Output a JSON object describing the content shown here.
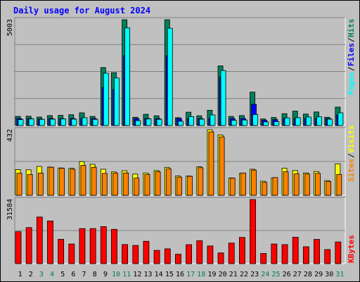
{
  "title": "Daily usage for August 2024",
  "colors": {
    "hits": "#00805c",
    "files": "#0000ff",
    "pages": "#00ffff",
    "visits": "#ffff00",
    "sites": "#ff8000",
    "kbytes": "#ff0000",
    "weekend_label": "#00805c",
    "weekday_label": "#000000"
  },
  "chart_data": [
    {
      "type": "bar",
      "panel": "hits-files-pages",
      "categories": [
        "1",
        "2",
        "3",
        "4",
        "5",
        "6",
        "7",
        "8",
        "9",
        "10",
        "11",
        "12",
        "13",
        "14",
        "15",
        "16",
        "17",
        "18",
        "19",
        "20",
        "21",
        "22",
        "23",
        "24",
        "25",
        "26",
        "27",
        "28",
        "29",
        "30",
        "31"
      ],
      "weekend_days": [
        "3",
        "4",
        "10",
        "11",
        "17",
        "18",
        "24",
        "25",
        "31"
      ],
      "max_label": "5003",
      "ylim": [
        0,
        5003
      ],
      "series": [
        {
          "name": "Hits",
          "values": [
            430,
            440,
            400,
            470,
            480,
            510,
            600,
            430,
            2740,
            2500,
            5003,
            390,
            530,
            460,
            5003,
            370,
            630,
            460,
            720,
            2820,
            430,
            470,
            1580,
            310,
            380,
            560,
            680,
            540,
            640,
            390,
            870
          ]
        },
        {
          "name": "Files",
          "values": [
            330,
            330,
            300,
            330,
            320,
            330,
            330,
            330,
            1800,
            1700,
            3300,
            330,
            330,
            330,
            3300,
            330,
            330,
            330,
            330,
            2300,
            330,
            330,
            1000,
            250,
            280,
            330,
            330,
            330,
            330,
            330,
            500
          ]
        },
        {
          "name": "Pages",
          "values": [
            280,
            310,
            290,
            300,
            310,
            300,
            370,
            290,
            2470,
            2250,
            4620,
            230,
            310,
            290,
            4600,
            200,
            420,
            300,
            500,
            2600,
            240,
            260,
            520,
            170,
            180,
            360,
            370,
            400,
            410,
            300,
            600
          ]
        }
      ],
      "legend": [
        "Pages",
        "Files",
        "Hits"
      ]
    },
    {
      "type": "bar",
      "panel": "visits-sites",
      "categories": [
        "1",
        "2",
        "3",
        "4",
        "5",
        "6",
        "7",
        "8",
        "9",
        "10",
        "11",
        "12",
        "13",
        "14",
        "15",
        "16",
        "17",
        "18",
        "19",
        "20",
        "21",
        "22",
        "23",
        "24",
        "25",
        "26",
        "27",
        "28",
        "29",
        "30",
        "31"
      ],
      "max_label": "432",
      "ylim": [
        0,
        432
      ],
      "series": [
        {
          "name": "Visits",
          "values": [
            170,
            168,
            190,
            186,
            180,
            178,
            222,
            204,
            172,
            154,
            162,
            140,
            147,
            163,
            184,
            127,
            127,
            188,
            432,
            397,
            114,
            144,
            172,
            93,
            114,
            178,
            163,
            147,
            157,
            97,
            207
          ]
        },
        {
          "name": "Sites",
          "values": [
            145,
            137,
            146,
            185,
            178,
            172,
            197,
            185,
            144,
            146,
            147,
            113,
            137,
            155,
            174,
            120,
            125,
            182,
            418,
            385,
            113,
            147,
            166,
            85,
            117,
            155,
            141,
            140,
            145,
            91,
            137
          ]
        }
      ],
      "legend": [
        "Sites",
        "Visits"
      ]
    },
    {
      "type": "bar",
      "panel": "kbytes",
      "categories": [
        "1",
        "2",
        "3",
        "4",
        "5",
        "6",
        "7",
        "8",
        "9",
        "10",
        "11",
        "12",
        "13",
        "14",
        "15",
        "16",
        "17",
        "18",
        "19",
        "20",
        "21",
        "22",
        "23",
        "24",
        "25",
        "26",
        "27",
        "28",
        "29",
        "30",
        "31"
      ],
      "max_label": "31584",
      "ylim": [
        0,
        31584
      ],
      "series": [
        {
          "name": "KBytes",
          "values": [
            15740,
            17770,
            22970,
            21030,
            12000,
            9680,
            17280,
            17300,
            18240,
            16910,
            9420,
            8970,
            11030,
            6540,
            7310,
            4640,
            9370,
            11290,
            8730,
            5300,
            10150,
            12930,
            31584,
            5020,
            9690,
            9380,
            13010,
            8340,
            11960,
            6970,
            10700
          ]
        }
      ],
      "legend": [
        "KBytes"
      ]
    }
  ]
}
